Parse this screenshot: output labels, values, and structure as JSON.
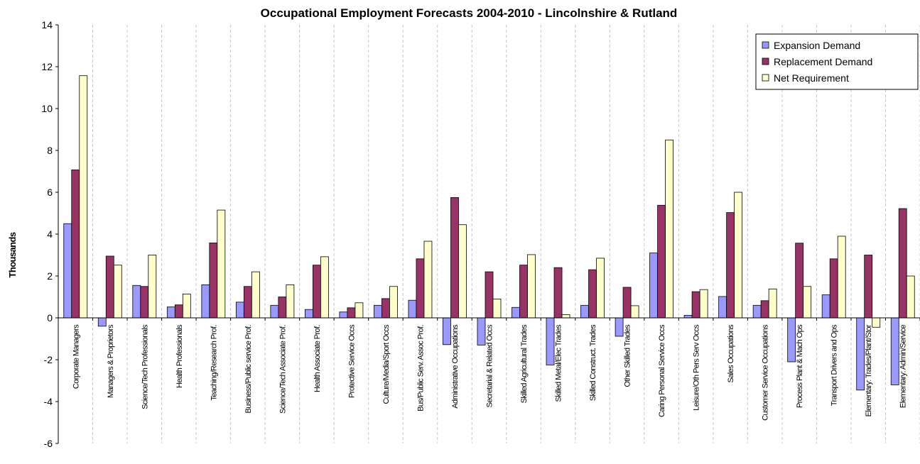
{
  "chart_data": {
    "type": "bar",
    "title": "Occupational Employment Forecasts 2004-2010 - Lincolnshire & Rutland",
    "xlabel": "",
    "ylabel": "Thousands",
    "ylim": [
      -6,
      14
    ],
    "yticks": [
      -6,
      -4,
      -2,
      0,
      2,
      4,
      6,
      8,
      10,
      12,
      14
    ],
    "grid": "vertical dashed",
    "legend_position": "top-right",
    "categories": [
      "Corporate Managers",
      "Managers & Proprietors",
      "Science/Tech Professionals",
      "Health Professionals",
      "Teaching/Research Prof.",
      "Business/Public service Prof.",
      "Science/Tech Associate Prof.",
      "Health Associate Prof.",
      "Protective Service Occs",
      "Culture/Media/Sport Occs",
      "Bus/Public Serv. Assoc Prof.",
      "Administrative Occupations",
      "Secretarial & Related Occs",
      "Skilled Agricultural Trades",
      "Skilled Metal/Elec Trades",
      "Skilled Construct. Trades",
      "Other Skilled Trades",
      "Caring Personal Service Occs",
      "Leisure/Oth Pers Serv Occs",
      "Sales Occupations",
      "Customer Service Occupations",
      "Process Plant & Mach Ops",
      "Transport Drivers and Ops",
      "Elementary: Trades/Plant/Stor",
      "Elementary: Admin/Service"
    ],
    "series": [
      {
        "name": "Expansion Demand",
        "color": "#9999ff",
        "values": [
          4.5,
          -0.4,
          1.55,
          0.52,
          1.58,
          0.75,
          0.6,
          0.4,
          0.28,
          0.6,
          0.84,
          -1.28,
          -1.3,
          0.5,
          -2.25,
          0.6,
          -0.88,
          3.1,
          0.12,
          1.02,
          0.6,
          -2.1,
          1.1,
          -3.45,
          -3.2
        ]
      },
      {
        "name": "Replacement Demand",
        "color": "#993366",
        "values": [
          7.07,
          2.95,
          1.5,
          0.62,
          3.58,
          1.5,
          1.0,
          2.52,
          0.48,
          0.92,
          2.82,
          5.75,
          2.2,
          2.52,
          2.4,
          2.3,
          1.46,
          5.38,
          1.25,
          5.03,
          0.82,
          3.57,
          2.82,
          3.0,
          5.22
        ]
      },
      {
        "name": "Net Requirement",
        "color": "#ffffcc",
        "values": [
          11.57,
          2.52,
          3.0,
          1.14,
          5.15,
          2.2,
          1.58,
          2.92,
          0.72,
          1.5,
          3.66,
          4.45,
          0.9,
          3.02,
          0.15,
          2.85,
          0.58,
          8.5,
          1.35,
          6.0,
          1.38,
          1.5,
          3.9,
          -0.45,
          2.0
        ]
      }
    ]
  }
}
